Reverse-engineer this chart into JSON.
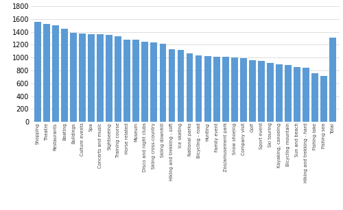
{
  "categories": [
    "Shopping",
    "Theatre",
    "Restaurants",
    "Boating",
    "Buildings",
    "Culture events",
    "Spa",
    "Concerts and music",
    "Sightseeing",
    "Training course",
    "Horse related",
    "Museum",
    "Disco and night clubs",
    "Skiing cross-country",
    "Skiing downhill",
    "Hiking and trekking - soft",
    "Ice skating",
    "National parks",
    "Bicycling - road",
    "Hunting",
    "Family event",
    "Zoo/amusement park",
    "Snow shoeing",
    "Company visit",
    "Golf",
    "Sport event",
    "Ski touring",
    "Kayaking, canoeing",
    "Bicycling mountain",
    "Sun and beach",
    "Hiking and trekking - hard",
    "Fishing lake",
    "Fishing sea",
    "Total"
  ],
  "values": [
    1555,
    1530,
    1500,
    1455,
    1385,
    1380,
    1365,
    1360,
    1350,
    1330,
    1285,
    1280,
    1250,
    1240,
    1220,
    1130,
    1115,
    1065,
    1030,
    1025,
    1015,
    1015,
    1000,
    995,
    955,
    950,
    920,
    895,
    885,
    855,
    845,
    755,
    720,
    1310
  ],
  "bar_color": "#5b9bd5",
  "edge_color": "none",
  "ylim": [
    0,
    1800
  ],
  "yticks": [
    0,
    200,
    400,
    600,
    800,
    1000,
    1200,
    1400,
    1600,
    1800
  ],
  "grid_color": "#d0d0d0",
  "background_color": "#ffffff",
  "ytick_fontsize": 7,
  "xtick_fontsize": 4.8
}
